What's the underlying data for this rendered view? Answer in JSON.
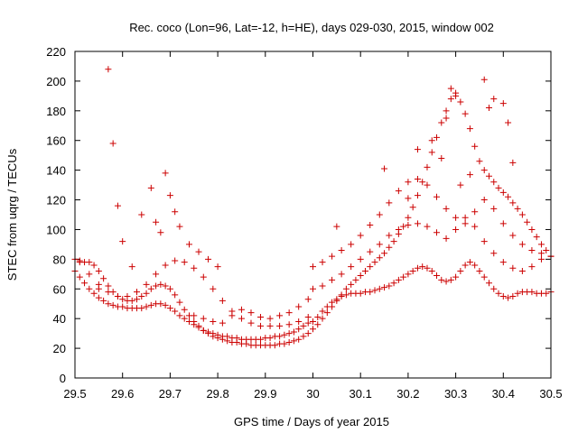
{
  "chart_data": {
    "type": "scatter",
    "title": "Rec. coco (Lon=96, Lat=-12, h=HE), days 029-030, 2015, window 002",
    "xlabel": "GPS time / Days of year 2015",
    "ylabel": "STEC from uqrg / TECUs",
    "xlim": [
      29.5,
      30.5
    ],
    "ylim": [
      0,
      220
    ],
    "xticks": [
      29.5,
      29.6,
      29.7,
      29.8,
      29.9,
      30.0,
      30.1,
      30.2,
      30.3,
      30.4,
      30.5
    ],
    "xtick_labels": [
      "29.5",
      "29.6",
      "29.7",
      "29.8",
      "29.9",
      "30",
      "30.1",
      "30.2",
      "30.3",
      "30.4",
      "30.5"
    ],
    "yticks": [
      0,
      20,
      40,
      60,
      80,
      100,
      120,
      140,
      160,
      180,
      200,
      220
    ],
    "ytick_labels": [
      "0",
      "20",
      "40",
      "60",
      "80",
      "100",
      "120",
      "140",
      "160",
      "180",
      "200",
      "220"
    ],
    "grid": false,
    "marker": "+",
    "marker_color": "#cc0000",
    "series": [
      {
        "x": [
          29.5,
          29.51,
          29.52,
          29.53,
          29.54,
          29.55,
          29.56,
          29.57,
          29.58,
          29.59,
          29.6,
          29.61,
          29.62,
          29.63,
          29.64,
          29.65,
          29.66,
          29.67,
          29.68,
          29.69,
          29.7,
          29.71,
          29.72,
          29.73,
          29.74,
          29.75,
          29.76,
          29.77,
          29.78,
          29.79,
          29.8,
          29.81,
          29.82,
          29.83,
          29.84,
          29.85,
          29.86,
          29.87,
          29.88,
          29.89,
          29.9,
          29.91,
          29.92,
          29.93,
          29.94,
          29.95,
          29.96,
          29.97,
          29.98,
          29.99
        ],
        "y": [
          80,
          79,
          78,
          78,
          76,
          72,
          67,
          62,
          58,
          55,
          53,
          52,
          52,
          53,
          55,
          57,
          60,
          62,
          63,
          62,
          60,
          56,
          51,
          46,
          42,
          38,
          35,
          32,
          30,
          28,
          27,
          26,
          25,
          24,
          24,
          23,
          23,
          22,
          22,
          22,
          22,
          22,
          22,
          23,
          23,
          24,
          25,
          26,
          28,
          30
        ]
      },
      {
        "x": [
          29.5,
          29.51,
          29.52,
          29.53,
          29.54,
          29.55,
          29.56,
          29.57,
          29.58,
          29.59,
          29.6,
          29.61,
          29.62,
          29.63,
          29.64,
          29.65,
          29.66,
          29.67,
          29.68,
          29.69,
          29.7,
          29.71,
          29.72,
          29.73,
          29.74,
          29.75,
          29.76,
          29.77,
          29.78,
          29.79,
          29.8,
          29.81,
          29.82,
          29.83,
          29.84,
          29.85,
          29.86,
          29.87,
          29.88,
          29.89,
          29.9,
          29.91,
          29.92,
          29.93,
          29.94,
          29.95,
          29.96,
          29.97,
          29.98,
          29.99
        ],
        "y": [
          72,
          68,
          64,
          60,
          57,
          54,
          52,
          50,
          49,
          48,
          48,
          47,
          47,
          47,
          47,
          48,
          49,
          50,
          50,
          49,
          47,
          45,
          42,
          40,
          38,
          36,
          34,
          32,
          31,
          30,
          29,
          28,
          28,
          27,
          27,
          26,
          26,
          26,
          26,
          26,
          27,
          27,
          28,
          28,
          29,
          30,
          31,
          33,
          35,
          37
        ]
      },
      {
        "x": [
          29.51,
          29.53,
          29.55,
          29.57,
          29.59,
          29.61,
          29.63,
          29.65,
          29.67,
          29.69,
          29.71,
          29.73,
          29.75,
          29.77,
          29.79,
          29.81,
          29.83,
          29.85,
          29.87,
          29.89,
          29.91,
          29.93,
          29.95,
          29.97,
          29.99
        ],
        "y": [
          78,
          70,
          63,
          58,
          55,
          55,
          58,
          63,
          70,
          76,
          79,
          78,
          74,
          68,
          60,
          52,
          45,
          40,
          37,
          35,
          35,
          35,
          36,
          38,
          41
        ]
      },
      {
        "x": [
          29.55,
          29.6,
          29.62,
          29.64,
          29.66,
          29.67,
          29.68,
          29.69,
          29.7,
          29.71,
          29.72,
          29.74,
          29.76,
          29.78,
          29.8
        ],
        "y": [
          60,
          92,
          75,
          110,
          128,
          105,
          98,
          138,
          123,
          112,
          102,
          90,
          85,
          80,
          75
        ]
      },
      {
        "x": [
          29.57,
          29.58,
          29.59
        ],
        "y": [
          208,
          158,
          116
        ]
      },
      {
        "x": [
          29.75,
          29.77,
          29.79,
          29.81,
          29.83,
          29.85,
          29.87,
          29.89,
          29.91,
          29.93,
          29.95,
          29.97,
          29.99
        ],
        "y": [
          42,
          40,
          38,
          37,
          42,
          46,
          44,
          41,
          40,
          42,
          44,
          48,
          53
        ]
      },
      {
        "x": [
          30.0,
          30.01,
          30.02,
          30.03,
          30.04,
          30.05,
          30.06,
          30.07,
          30.08,
          30.09,
          30.1,
          30.11,
          30.12,
          30.13,
          30.14,
          30.15,
          30.16,
          30.17,
          30.18,
          30.19,
          30.2,
          30.21,
          30.22,
          30.23,
          30.24,
          30.25,
          30.26,
          30.27,
          30.28,
          30.29,
          30.3,
          30.31,
          30.32,
          30.33,
          30.34,
          30.35,
          30.36,
          30.37,
          30.38,
          30.39,
          30.4,
          30.41,
          30.42,
          30.43,
          30.44,
          30.45,
          30.46,
          30.47,
          30.48,
          30.49,
          30.5
        ],
        "y": [
          33,
          36,
          40,
          44,
          48,
          52,
          56,
          60,
          63,
          66,
          69,
          72,
          75,
          78,
          81,
          84,
          88,
          92,
          97,
          102,
          108,
          115,
          123,
          132,
          142,
          152,
          162,
          172,
          180,
          188,
          190,
          186,
          178,
          168,
          156,
          146,
          140,
          136,
          132,
          128,
          125,
          122,
          118,
          114,
          110,
          105,
          100,
          95,
          90,
          86,
          82
        ]
      },
      {
        "x": [
          30.0,
          30.01,
          30.02,
          30.03,
          30.04,
          30.05,
          30.06,
          30.07,
          30.08,
          30.09,
          30.1,
          30.11,
          30.12,
          30.13,
          30.14,
          30.15,
          30.16,
          30.17,
          30.18,
          30.19,
          30.2,
          30.21,
          30.22,
          30.23,
          30.24,
          30.25,
          30.26,
          30.27,
          30.28,
          30.29,
          30.3,
          30.31,
          30.32,
          30.33,
          30.34,
          30.35,
          30.36,
          30.37,
          30.38,
          30.39,
          30.4,
          30.41,
          30.42,
          30.43,
          30.44,
          30.45,
          30.46,
          30.47,
          30.48,
          30.49,
          30.5
        ],
        "y": [
          38,
          41,
          45,
          48,
          51,
          53,
          55,
          56,
          57,
          57,
          57,
          58,
          58,
          59,
          60,
          61,
          62,
          64,
          66,
          68,
          70,
          72,
          74,
          75,
          74,
          72,
          69,
          66,
          65,
          66,
          68,
          72,
          76,
          78,
          76,
          72,
          68,
          64,
          60,
          57,
          55,
          54,
          55,
          57,
          58,
          58,
          58,
          57,
          57,
          57,
          58
        ]
      },
      {
        "x": [
          30.0,
          30.02,
          30.04,
          30.06,
          30.08,
          30.1,
          30.12,
          30.14,
          30.16,
          30.18,
          30.2,
          30.22,
          30.24,
          30.26,
          30.28,
          30.3,
          30.32,
          30.34,
          30.36,
          30.38,
          30.4,
          30.42,
          30.44,
          30.46,
          30.48,
          30.5
        ],
        "y": [
          60,
          62,
          66,
          70,
          75,
          80,
          85,
          90,
          96,
          100,
          103,
          104,
          102,
          98,
          94,
          100,
          108,
          102,
          92,
          84,
          78,
          74,
          72,
          75,
          80,
          82
        ]
      },
      {
        "x": [
          30.0,
          30.02,
          30.04,
          30.06,
          30.08,
          30.1,
          30.12,
          30.14,
          30.16,
          30.18,
          30.2,
          30.22,
          30.24,
          30.26,
          30.28,
          30.3,
          30.32,
          30.34,
          30.36,
          30.38,
          30.4,
          30.42,
          30.44,
          30.46,
          30.48,
          30.5
        ],
        "y": [
          75,
          78,
          82,
          86,
          90,
          96,
          103,
          110,
          118,
          126,
          132,
          134,
          130,
          122,
          114,
          108,
          104,
          112,
          120,
          114,
          104,
          96,
          90,
          86,
          84,
          82
        ]
      },
      {
        "x": [
          30.05,
          30.15,
          30.2,
          30.22,
          30.25,
          30.27,
          30.28,
          30.29,
          30.3,
          30.31,
          30.33,
          30.36,
          30.37,
          30.38,
          30.4,
          30.41,
          30.42
        ],
        "y": [
          102,
          141,
          121,
          154,
          160,
          148,
          175,
          195,
          192,
          130,
          137,
          201,
          182,
          188,
          185,
          172,
          145
        ]
      }
    ]
  }
}
